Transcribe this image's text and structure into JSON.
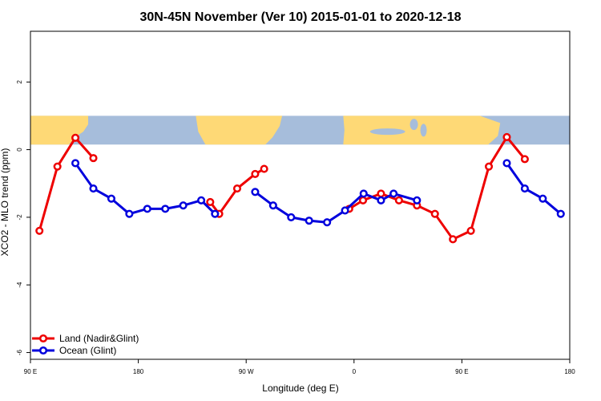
{
  "chart_data": {
    "type": "line",
    "title": "30N-45N November (Ver 10)   2015-01-01 to 2020-12-18",
    "xlabel": "Longitude (deg E)",
    "ylabel": "XCO2 - MLO trend (ppm)",
    "xlim": [
      90,
      540
    ],
    "ylim": [
      -6.2,
      3.5
    ],
    "x_ticks": [
      {
        "value": 90,
        "label": "90 E"
      },
      {
        "value": 180,
        "label": "180"
      },
      {
        "value": 270,
        "label": "90 W"
      },
      {
        "value": 360,
        "label": "0"
      },
      {
        "value": 450,
        "label": "90 E"
      },
      {
        "value": 540,
        "label": "180"
      }
    ],
    "y_ticks": [
      {
        "value": 2,
        "label": "2"
      },
      {
        "value": 0,
        "label": "0"
      },
      {
        "value": -2,
        "label": "-2"
      },
      {
        "value": -4,
        "label": "-4"
      },
      {
        "value": -6,
        "label": "-6"
      }
    ],
    "map_band": {
      "y_top": 1.0,
      "y_bottom": 0.15,
      "ocean_color": "#a6bddb",
      "land_color": "#fed976"
    },
    "legend_position": "bottom-left",
    "series": [
      {
        "name": "Land (Nadir&Glint)",
        "color": "#ee0000",
        "segments": [
          [
            [
              97.5,
              -2.4
            ],
            [
              112.5,
              -0.5
            ],
            [
              127.5,
              0.35
            ],
            [
              142.5,
              -0.25
            ]
          ],
          [
            [
              240,
              -1.55
            ],
            [
              247.5,
              -1.9
            ],
            [
              262.5,
              -1.15
            ],
            [
              277.5,
              -0.72
            ],
            [
              285,
              -0.57
            ]
          ],
          [
            [
              356,
              -1.75
            ],
            [
              367.5,
              -1.5
            ],
            [
              382.5,
              -1.3
            ],
            [
              397.5,
              -1.5
            ],
            [
              412.5,
              -1.65
            ],
            [
              427.5,
              -1.9
            ],
            [
              442.5,
              -2.65
            ],
            [
              457.5,
              -2.4
            ],
            [
              472.5,
              -0.5
            ],
            [
              487.5,
              0.37
            ],
            [
              502.5,
              -0.28
            ]
          ]
        ]
      },
      {
        "name": "Ocean (Glint)",
        "color": "#0000dd",
        "segments": [
          [
            [
              127.5,
              -0.4
            ],
            [
              142.5,
              -1.15
            ],
            [
              157.5,
              -1.45
            ],
            [
              172.5,
              -1.9
            ],
            [
              187.5,
              -1.75
            ],
            [
              202.5,
              -1.75
            ],
            [
              217.5,
              -1.65
            ],
            [
              232.5,
              -1.5
            ],
            [
              244,
              -1.9
            ]
          ],
          [
            [
              277.5,
              -1.25
            ],
            [
              292.5,
              -1.65
            ],
            [
              307.5,
              -2.0
            ],
            [
              322.5,
              -2.1
            ],
            [
              337.5,
              -2.15
            ],
            [
              352.5,
              -1.8
            ],
            [
              368,
              -1.3
            ],
            [
              382.5,
              -1.5
            ],
            [
              393,
              -1.3
            ],
            [
              412.5,
              -1.5
            ]
          ],
          [
            [
              487.5,
              -0.4
            ],
            [
              502.5,
              -1.15
            ],
            [
              517.5,
              -1.45
            ],
            [
              532.5,
              -1.9
            ]
          ]
        ]
      }
    ]
  }
}
